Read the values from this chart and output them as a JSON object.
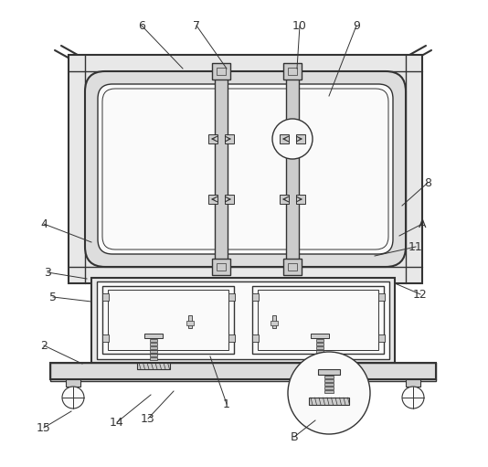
{
  "bg_color": "#ffffff",
  "lc": "#333333",
  "lc_light": "#888888",
  "fill_outer": "#e8e8e8",
  "fill_inner": "#f0f0f0",
  "fill_white": "#fafafa",
  "fill_dark": "#cccccc",
  "fill_med": "#dddddd"
}
